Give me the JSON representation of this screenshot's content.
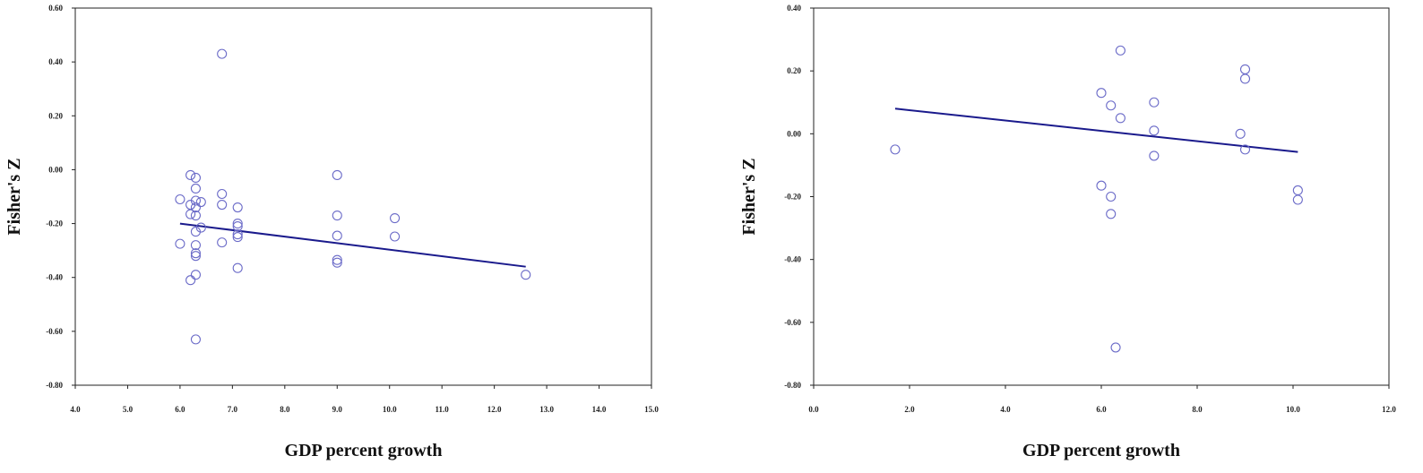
{
  "chart_data": [
    {
      "type": "scatter",
      "xlabel": "GDP percent growth",
      "ylabel": "Fisher's Z",
      "xlim": [
        4.0,
        15.0
      ],
      "ylim": [
        -0.8,
        0.6
      ],
      "xticks": [
        "4.0",
        "5.0",
        "6.0",
        "7.0",
        "8.0",
        "9.0",
        "10.0",
        "11.0",
        "12.0",
        "13.0",
        "14.0",
        "15.0"
      ],
      "yticks": [
        "0.60",
        "0.40",
        "0.20",
        "0.00",
        "-0.20",
        "-0.40",
        "-0.60",
        "-0.80"
      ],
      "points": [
        [
          6.0,
          -0.11
        ],
        [
          6.0,
          -0.275
        ],
        [
          6.2,
          -0.02
        ],
        [
          6.2,
          -0.13
        ],
        [
          6.2,
          -0.165
        ],
        [
          6.2,
          -0.41
        ],
        [
          6.3,
          -0.03
        ],
        [
          6.3,
          -0.07
        ],
        [
          6.3,
          -0.115
        ],
        [
          6.3,
          -0.14
        ],
        [
          6.3,
          -0.17
        ],
        [
          6.3,
          -0.23
        ],
        [
          6.3,
          -0.28
        ],
        [
          6.3,
          -0.31
        ],
        [
          6.3,
          -0.32
        ],
        [
          6.3,
          -0.39
        ],
        [
          6.3,
          -0.63
        ],
        [
          6.4,
          -0.12
        ],
        [
          6.4,
          -0.215
        ],
        [
          6.8,
          0.43
        ],
        [
          6.8,
          -0.09
        ],
        [
          6.8,
          -0.13
        ],
        [
          6.8,
          -0.27
        ],
        [
          7.1,
          -0.14
        ],
        [
          7.1,
          -0.2
        ],
        [
          7.1,
          -0.21
        ],
        [
          7.1,
          -0.24
        ],
        [
          7.1,
          -0.25
        ],
        [
          7.1,
          -0.365
        ],
        [
          9.0,
          -0.02
        ],
        [
          9.0,
          -0.17
        ],
        [
          9.0,
          -0.245
        ],
        [
          9.0,
          -0.335
        ],
        [
          9.0,
          -0.345
        ],
        [
          10.1,
          -0.18
        ],
        [
          10.1,
          -0.248
        ],
        [
          12.6,
          -0.39
        ]
      ],
      "trendline": [
        [
          6.0,
          -0.2
        ],
        [
          12.6,
          -0.36
        ]
      ],
      "marker_color": "#6b6bc8",
      "line_color": "#1a1a8c",
      "grid": false
    },
    {
      "type": "scatter",
      "xlabel": "GDP percent growth",
      "ylabel": "Fisher's Z",
      "xlim": [
        0.0,
        12.0
      ],
      "ylim": [
        -0.8,
        0.4
      ],
      "xticks": [
        "0.0",
        "2.0",
        "4.0",
        "6.0",
        "8.0",
        "10.0",
        "12.0"
      ],
      "yticks": [
        "0.40",
        "0.20",
        "0.00",
        "-0.20",
        "-0.40",
        "-0.60",
        "-0.80"
      ],
      "points": [
        [
          1.7,
          -0.05
        ],
        [
          6.0,
          0.13
        ],
        [
          6.0,
          -0.165
        ],
        [
          6.2,
          0.09
        ],
        [
          6.2,
          -0.2
        ],
        [
          6.2,
          -0.255
        ],
        [
          6.3,
          -0.68
        ],
        [
          6.4,
          0.265
        ],
        [
          6.4,
          0.05
        ],
        [
          7.1,
          0.1
        ],
        [
          7.1,
          0.01
        ],
        [
          7.1,
          -0.07
        ],
        [
          8.9,
          0.0
        ],
        [
          9.0,
          0.205
        ],
        [
          9.0,
          0.175
        ],
        [
          9.0,
          -0.05
        ],
        [
          10.1,
          -0.18
        ],
        [
          10.1,
          -0.21
        ]
      ],
      "trendline": [
        [
          1.7,
          0.08
        ],
        [
          10.1,
          -0.058
        ]
      ],
      "marker_color": "#6b6bc8",
      "line_color": "#1a1a8c",
      "grid": false
    }
  ]
}
